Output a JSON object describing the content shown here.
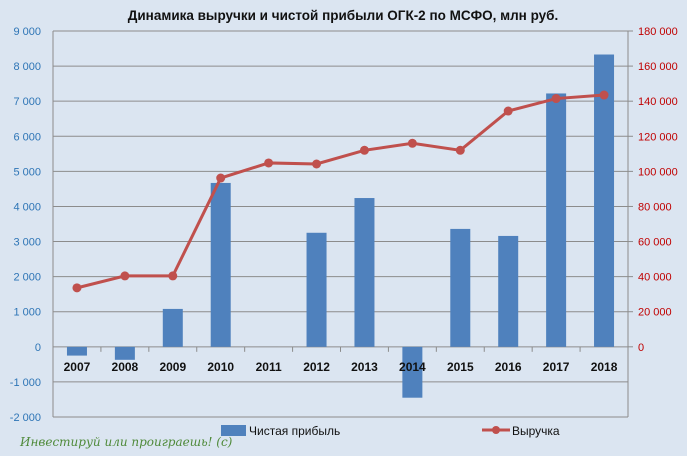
{
  "chart_data": {
    "type": "bar+line",
    "title": "Динамика выручки и чистой прибыли ОГК-2 по МСФО, млн руб.",
    "categories": [
      "2007",
      "2008",
      "2009",
      "2010",
      "2011",
      "2012",
      "2013",
      "2014",
      "2015",
      "2016",
      "2017",
      "2018"
    ],
    "series": [
      {
        "name": "Чистая прибыль",
        "type": "bar",
        "axis": "left",
        "color": "#4f81bd",
        "values": [
          -250,
          -370,
          1080,
          4670,
          0,
          3250,
          4240,
          -1450,
          3360,
          3160,
          7220,
          8330
        ]
      },
      {
        "name": "Выручка",
        "type": "line",
        "axis": "right",
        "color": "#c0504d",
        "values": [
          33600,
          40400,
          40400,
          96200,
          104800,
          104200,
          112000,
          116000,
          112000,
          134400,
          141500,
          143500
        ]
      }
    ],
    "left_axis": {
      "ylim": [
        -2000,
        9000
      ],
      "ticks": [
        "-2 000",
        "-1 000",
        "0",
        "1 000",
        "2 000",
        "3 000",
        "4 000",
        "5 000",
        "6 000",
        "7 000",
        "8 000",
        "9 000"
      ],
      "tick_values": [
        -2000,
        -1000,
        0,
        1000,
        2000,
        3000,
        4000,
        5000,
        6000,
        7000,
        8000,
        9000
      ],
      "color": "#2e75b6"
    },
    "right_axis": {
      "ylim": [
        -40000,
        180000
      ],
      "ticks": [
        "0",
        "20 000",
        "40 000",
        "60 000",
        "80 000",
        "100 000",
        "120 000",
        "140 000",
        "160 000",
        "180 000"
      ],
      "tick_values": [
        0,
        20000,
        40000,
        60000,
        80000,
        100000,
        120000,
        140000,
        160000,
        180000
      ],
      "color": "#c00000"
    },
    "grid": true,
    "legend_position": "bottom"
  },
  "watermark": "Инвестируй или проиграешь! (с)"
}
